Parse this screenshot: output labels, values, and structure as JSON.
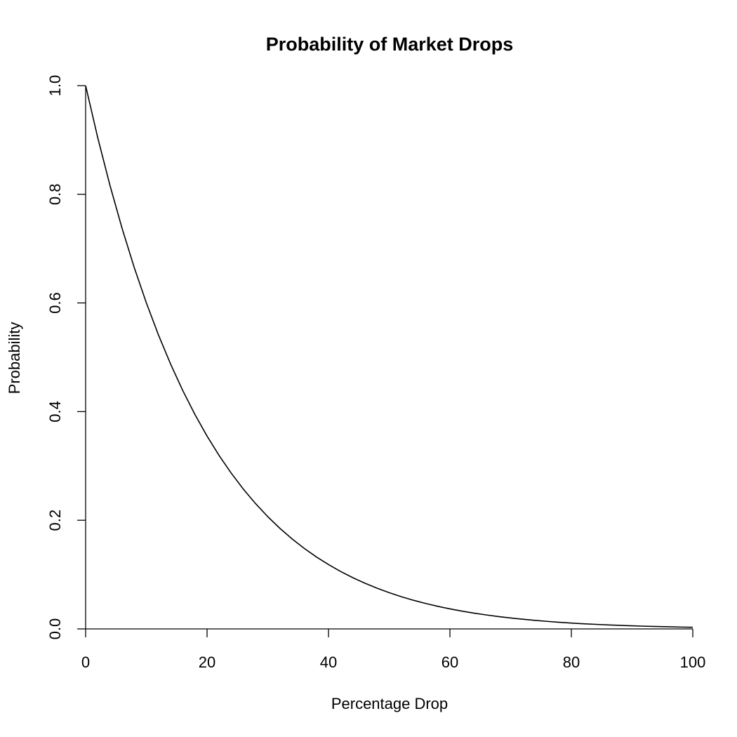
{
  "chart_data": {
    "type": "line",
    "title": "Probability of Market Drops",
    "xlabel": "Percentage Drop",
    "ylabel": "Probability",
    "xlim": [
      0,
      100
    ],
    "ylim": [
      0,
      1
    ],
    "x_ticks": [
      "0",
      "20",
      "40",
      "60",
      "80",
      "100"
    ],
    "y_ticks": [
      "0.0",
      "0.2",
      "0.4",
      "0.6",
      "0.8",
      "1.0"
    ],
    "grid": false,
    "series": [
      {
        "color": "#000000",
        "x": [
          0,
          2,
          4,
          6,
          8,
          10,
          12,
          14,
          16,
          18,
          20,
          22,
          24,
          26,
          28,
          30,
          32,
          34,
          36,
          38,
          40,
          42,
          44,
          46,
          48,
          50,
          52,
          54,
          56,
          58,
          60,
          62,
          64,
          66,
          68,
          70,
          72,
          74,
          76,
          78,
          80,
          82,
          84,
          86,
          88,
          90,
          92,
          94,
          96,
          98,
          100
        ],
        "y": [
          1.0,
          0.9039,
          0.8167,
          0.7374,
          0.6654,
          0.6001,
          0.5409,
          0.4873,
          0.4387,
          0.3947,
          0.3549,
          0.3189,
          0.2864,
          0.257,
          0.2305,
          0.2066,
          0.1851,
          0.1657,
          0.1482,
          0.1325,
          0.1184,
          0.1057,
          0.0943,
          0.0841,
          0.0749,
          0.0667,
          0.0593,
          0.0527,
          0.0468,
          0.0416,
          0.0369,
          0.0327,
          0.029,
          0.0257,
          0.0227,
          0.0201,
          0.0178,
          0.0157,
          0.0139,
          0.0122,
          0.0108,
          0.0095,
          0.0084,
          0.0074,
          0.0065,
          0.0057,
          0.005,
          0.0044,
          0.0039,
          0.0034,
          0.003
        ]
      }
    ]
  }
}
